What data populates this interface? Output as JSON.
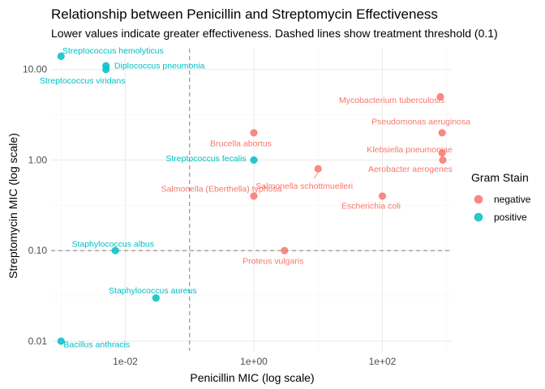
{
  "chart_data": {
    "type": "scatter",
    "title": "Relationship between Penicillin and Streptomycin Effectiveness",
    "subtitle": "Lower values indicate greater effectiveness. Dashed lines show treatment threshold (0.1)",
    "xlabel": "Penicillin MIC (log scale)",
    "ylabel": "Streptomycin MIC (log scale)",
    "x_scale": "log10",
    "y_scale": "log10",
    "x_ticks": [
      {
        "value": 0.01,
        "label": "1e-02"
      },
      {
        "value": 1,
        "label": "1e+00"
      },
      {
        "value": 100,
        "label": "1e+02"
      }
    ],
    "y_ticks": [
      {
        "value": 0.01,
        "label": "0.01"
      },
      {
        "value": 0.1,
        "label": "0.10"
      },
      {
        "value": 1,
        "label": "1.00"
      },
      {
        "value": 10,
        "label": "10.00"
      }
    ],
    "x_range": [
      0.0007,
      1200
    ],
    "y_range": [
      0.0078,
      17
    ],
    "threshold": 0.1,
    "grid": true,
    "legend": {
      "title": "Gram Stain",
      "position": "right",
      "entries": [
        {
          "name": "negative",
          "color": "#F8766D"
        },
        {
          "name": "positive",
          "color": "#00BFC4"
        }
      ]
    },
    "points": [
      {
        "label": "Aerobacter aerogenes",
        "x": 870,
        "y": 1.0,
        "group": "negative"
      },
      {
        "label": "Brucella abortus",
        "x": 1,
        "y": 2.0,
        "group": "negative"
      },
      {
        "label": "Escherichia coli",
        "x": 100,
        "y": 0.4,
        "group": "negative"
      },
      {
        "label": "Klebsiella pneumoniae",
        "x": 850,
        "y": 1.2,
        "group": "negative"
      },
      {
        "label": "Mycobacterium tuberculosis",
        "x": 800,
        "y": 5.0,
        "group": "negative"
      },
      {
        "label": "Proteus vulgaris",
        "x": 3,
        "y": 0.1,
        "group": "negative"
      },
      {
        "label": "Pseudomonas aeruginosa",
        "x": 850,
        "y": 2.0,
        "group": "negative"
      },
      {
        "label": "Salmonella (Eberthella) typhosa",
        "x": 1,
        "y": 0.4,
        "group": "negative"
      },
      {
        "label": "Salmonella schottmuelleri",
        "x": 10,
        "y": 0.8,
        "group": "negative"
      },
      {
        "label": "Bacillus anthracis",
        "x": 0.001,
        "y": 0.01,
        "group": "positive"
      },
      {
        "label": "Diplococcus pneumonia",
        "x": 0.005,
        "y": 11,
        "group": "positive"
      },
      {
        "label": "Staphylococcus albus",
        "x": 0.007,
        "y": 0.1,
        "group": "positive"
      },
      {
        "label": "Staphylococcus aureus",
        "x": 0.03,
        "y": 0.03,
        "group": "positive"
      },
      {
        "label": "Streptococcus fecalis",
        "x": 1,
        "y": 1.0,
        "group": "positive"
      },
      {
        "label": "Streptococcus hemolyticus",
        "x": 0.001,
        "y": 14,
        "group": "positive"
      },
      {
        "label": "Streptococcus viridans",
        "x": 0.005,
        "y": 10,
        "group": "positive"
      }
    ]
  }
}
